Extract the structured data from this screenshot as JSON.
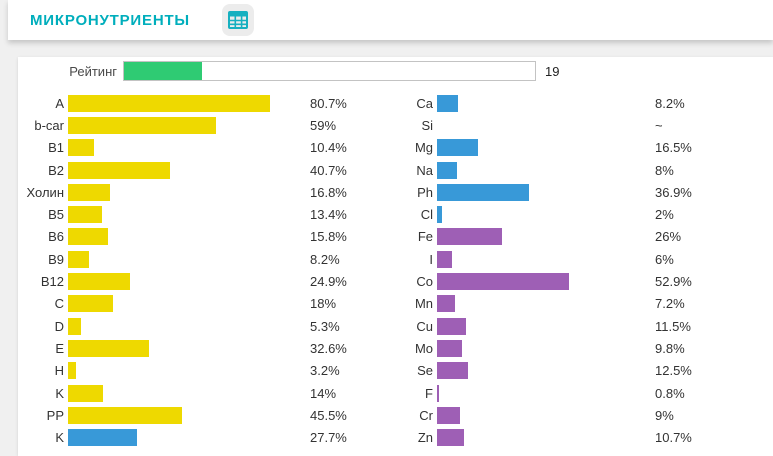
{
  "header": {
    "title": "МИКРОНУТРИЕНТЫ"
  },
  "rating": {
    "label": "Рейтинг",
    "display": "19",
    "fill_percent": 19,
    "fill_color": "#2fcb73"
  },
  "colors": {
    "vitamin": "#eed900",
    "mineral": "#3899d8",
    "trace": "#9e5fb5",
    "accent_teal": "#00aebc"
  },
  "chart_data": {
    "type": "bar",
    "orientation": "horizontal",
    "title": "МИКРОНУТРИЕНТЫ",
    "value_unit": "%",
    "xlim": [
      0,
      100
    ],
    "columns": [
      {
        "name": "vitamins",
        "rows": [
          {
            "label": "A",
            "value": 80.7,
            "display": "80.7%",
            "color": "vitamin"
          },
          {
            "label": "b-car",
            "value": 59,
            "display": "59%",
            "color": "vitamin"
          },
          {
            "label": "B1",
            "value": 10.4,
            "display": "10.4%",
            "color": "vitamin"
          },
          {
            "label": "B2",
            "value": 40.7,
            "display": "40.7%",
            "color": "vitamin"
          },
          {
            "label": "Холин",
            "value": 16.8,
            "display": "16.8%",
            "color": "vitamin"
          },
          {
            "label": "B5",
            "value": 13.4,
            "display": "13.4%",
            "color": "vitamin"
          },
          {
            "label": "B6",
            "value": 15.8,
            "display": "15.8%",
            "color": "vitamin"
          },
          {
            "label": "B9",
            "value": 8.2,
            "display": "8.2%",
            "color": "vitamin"
          },
          {
            "label": "B12",
            "value": 24.9,
            "display": "24.9%",
            "color": "vitamin"
          },
          {
            "label": "C",
            "value": 18,
            "display": "18%",
            "color": "vitamin"
          },
          {
            "label": "D",
            "value": 5.3,
            "display": "5.3%",
            "color": "vitamin"
          },
          {
            "label": "E",
            "value": 32.6,
            "display": "32.6%",
            "color": "vitamin"
          },
          {
            "label": "H",
            "value": 3.2,
            "display": "3.2%",
            "color": "vitamin"
          },
          {
            "label": "K",
            "value": 14,
            "display": "14%",
            "color": "vitamin"
          },
          {
            "label": "PP",
            "value": 45.5,
            "display": "45.5%",
            "color": "vitamin"
          },
          {
            "label": "K",
            "value": 27.7,
            "display": "27.7%",
            "color": "mineral"
          }
        ]
      },
      {
        "name": "minerals-and-trace-elements",
        "rows": [
          {
            "label": "Ca",
            "value": 8.2,
            "display": "8.2%",
            "color": "mineral"
          },
          {
            "label": "Si",
            "value": null,
            "display": "~",
            "color": "mineral"
          },
          {
            "label": "Mg",
            "value": 16.5,
            "display": "16.5%",
            "color": "mineral"
          },
          {
            "label": "Na",
            "value": 8,
            "display": "8%",
            "color": "mineral"
          },
          {
            "label": "Ph",
            "value": 36.9,
            "display": "36.9%",
            "color": "mineral"
          },
          {
            "label": "Cl",
            "value": 2,
            "display": "2%",
            "color": "mineral"
          },
          {
            "label": "Fe",
            "value": 26,
            "display": "26%",
            "color": "trace"
          },
          {
            "label": "I",
            "value": 6,
            "display": "6%",
            "color": "trace"
          },
          {
            "label": "Co",
            "value": 52.9,
            "display": "52.9%",
            "color": "trace"
          },
          {
            "label": "Mn",
            "value": 7.2,
            "display": "7.2%",
            "color": "trace"
          },
          {
            "label": "Cu",
            "value": 11.5,
            "display": "11.5%",
            "color": "trace"
          },
          {
            "label": "Mo",
            "value": 9.8,
            "display": "9.8%",
            "color": "trace"
          },
          {
            "label": "Se",
            "value": 12.5,
            "display": "12.5%",
            "color": "trace"
          },
          {
            "label": "F",
            "value": 0.8,
            "display": "0.8%",
            "color": "trace"
          },
          {
            "label": "Cr",
            "value": 9,
            "display": "9%",
            "color": "trace"
          },
          {
            "label": "Zn",
            "value": 10.7,
            "display": "10.7%",
            "color": "trace"
          }
        ]
      }
    ]
  }
}
